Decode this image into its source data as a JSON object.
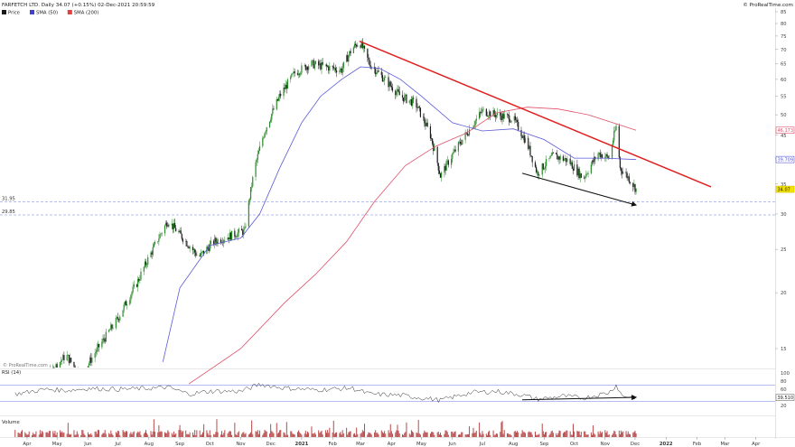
{
  "header": {
    "title": "FARFETCH LTD. Daily 34.07 (+0.15%) 02-Dec-2021 20:59:59",
    "brand": "© ProRealTime.com"
  },
  "legend": [
    {
      "label": "Price",
      "color": "#1a1a1a"
    },
    {
      "label": "SMA (50)",
      "color": "#3f3fd0"
    },
    {
      "label": "SMA (200)",
      "color": "#e04040"
    }
  ],
  "watermark": "© ProRealTime.com",
  "colors": {
    "bull": "#2a8a2a",
    "bear": "#1a1a1a",
    "sma50": "#5a5ad8",
    "sma200": "#e0506a",
    "trendline": "#e02020",
    "support": "#9aa6f0",
    "volume": "#b84a4a",
    "rsi": "#2a2a2a",
    "arrow": "#111111"
  },
  "chart_data": [
    {
      "type": "candlestick",
      "title": "FARFETCH LTD. Daily 34.07 (+0.15%) 02-Dec-2021 20:59:59",
      "scale": "log",
      "ylim": [
        12.5,
        85
      ],
      "price_ticks": [
        "85",
        "80",
        "75",
        "70",
        "65",
        "60",
        "55",
        "50",
        "45",
        "40",
        "35",
        "30",
        "25",
        "20",
        "15"
      ],
      "x_ticks": [
        "Apr",
        "May",
        "Jun",
        "Jul",
        "Aug",
        "Sep",
        "Oct",
        "Nov",
        "Dec",
        "2021",
        "Feb",
        "Mar",
        "Apr",
        "May",
        "Jun",
        "Jul",
        "Aug",
        "Sep",
        "Oct",
        "Nov",
        "Dec",
        "2022",
        "Feb",
        "Mar",
        "Apr"
      ],
      "x_tick_dates": [
        "2020-04-01",
        "2020-05-01",
        "2020-06-01",
        "2020-07-01",
        "2020-08-01",
        "2020-09-01",
        "2020-10-01",
        "2020-11-01",
        "2020-12-01",
        "2021-01-01",
        "2021-02-01",
        "2021-03-01",
        "2021-04-01",
        "2021-05-01",
        "2021-06-01",
        "2021-07-01",
        "2021-08-01",
        "2021-09-01",
        "2021-10-01",
        "2021-11-01",
        "2021-12-01",
        "2022-01-01",
        "2022-02-01",
        "2022-03-01",
        "2022-04-01"
      ],
      "price_path": [
        [
          "2020-03-20",
          10.5
        ],
        [
          "2020-04-15",
          12.5
        ],
        [
          "2020-05-10",
          14.5
        ],
        [
          "2020-05-25",
          13.0
        ],
        [
          "2020-06-15",
          15.5
        ],
        [
          "2020-07-01",
          17.5
        ],
        [
          "2020-07-20",
          21.0
        ],
        [
          "2020-08-05",
          25.0
        ],
        [
          "2020-08-20",
          29.0
        ],
        [
          "2020-09-01",
          27.0
        ],
        [
          "2020-09-20",
          24.0
        ],
        [
          "2020-10-05",
          26.0
        ],
        [
          "2020-10-25",
          27.0
        ],
        [
          "2020-11-05",
          27.5
        ],
        [
          "2020-11-15",
          38.0
        ],
        [
          "2020-11-25",
          46.0
        ],
        [
          "2020-12-10",
          55.0
        ],
        [
          "2020-12-25",
          62.0
        ],
        [
          "2021-01-10",
          65.0
        ],
        [
          "2021-01-25",
          64.0
        ],
        [
          "2021-02-10",
          63.0
        ],
        [
          "2021-02-20",
          70.0
        ],
        [
          "2021-02-28",
          73.0
        ],
        [
          "2021-03-10",
          65.0
        ],
        [
          "2021-03-25",
          60.0
        ],
        [
          "2021-04-10",
          55.0
        ],
        [
          "2021-04-25",
          53.0
        ],
        [
          "2021-05-10",
          45.0
        ],
        [
          "2021-05-20",
          36.5
        ],
        [
          "2021-06-05",
          42.0
        ],
        [
          "2021-06-20",
          47.0
        ],
        [
          "2021-07-01",
          51.0
        ],
        [
          "2021-07-15",
          50.0
        ],
        [
          "2021-08-01",
          49.0
        ],
        [
          "2021-08-15",
          43.0
        ],
        [
          "2021-08-25",
          37.0
        ],
        [
          "2021-09-10",
          40.5
        ],
        [
          "2021-09-25",
          39.5
        ],
        [
          "2021-10-10",
          36.0
        ],
        [
          "2021-10-25",
          41.0
        ],
        [
          "2021-11-05",
          40.0
        ],
        [
          "2021-11-12",
          47.0
        ],
        [
          "2021-11-16",
          38.0
        ],
        [
          "2021-11-25",
          36.0
        ],
        [
          "2021-12-02",
          34.07
        ]
      ],
      "sma50": [
        [
          "2020-08-15",
          14.0
        ],
        [
          "2020-09-01",
          20.5
        ],
        [
          "2020-10-01",
          25.5
        ],
        [
          "2020-11-01",
          26.5
        ],
        [
          "2020-11-20",
          30.0
        ],
        [
          "2020-12-10",
          38.0
        ],
        [
          "2021-01-01",
          48.0
        ],
        [
          "2021-01-20",
          55.0
        ],
        [
          "2021-02-10",
          60.0
        ],
        [
          "2021-03-01",
          64.0
        ],
        [
          "2021-03-20",
          63.5
        ],
        [
          "2021-04-10",
          60.0
        ],
        [
          "2021-05-01",
          55.0
        ],
        [
          "2021-06-01",
          48.0
        ],
        [
          "2021-07-01",
          46.0
        ],
        [
          "2021-08-01",
          46.5
        ],
        [
          "2021-09-01",
          44.0
        ],
        [
          "2021-10-01",
          40.0
        ],
        [
          "2021-11-01",
          40.0
        ],
        [
          "2021-12-02",
          39.709
        ]
      ],
      "sma200": [
        [
          "2020-09-10",
          12.5
        ],
        [
          "2020-11-01",
          15.0
        ],
        [
          "2020-12-15",
          19.0
        ],
        [
          "2021-01-15",
          22.0
        ],
        [
          "2021-02-15",
          26.0
        ],
        [
          "2021-03-15",
          32.0
        ],
        [
          "2021-04-15",
          38.5
        ],
        [
          "2021-05-15",
          42.5
        ],
        [
          "2021-06-15",
          45.5
        ],
        [
          "2021-07-15",
          50.5
        ],
        [
          "2021-08-15",
          52.0
        ],
        [
          "2021-09-15",
          51.5
        ],
        [
          "2021-10-15",
          50.0
        ],
        [
          "2021-11-15",
          47.5
        ],
        [
          "2021-12-02",
          46.173
        ]
      ],
      "trendline": [
        [
          "2021-02-28",
          73.0
        ],
        [
          "2022-02-15",
          34.5
        ]
      ],
      "divergence_arrow": [
        [
          "2021-08-10",
          37.0
        ],
        [
          "2021-12-02",
          31.4
        ]
      ],
      "support_levels": [
        {
          "label": "31.95",
          "value": 31.95
        },
        {
          "label": "29.85",
          "value": 29.85
        }
      ],
      "right_tags": [
        {
          "label": "46.173",
          "value": 46.173,
          "series": "sma200"
        },
        {
          "label": "39.709",
          "value": 39.709,
          "series": "sma50"
        },
        {
          "label": "34.07",
          "value": 34.07,
          "series": "price"
        }
      ]
    },
    {
      "type": "line",
      "title": "RSI (14)",
      "ylim": [
        0,
        100
      ],
      "y_ticks": [
        "100",
        "80",
        "60",
        "40",
        "20"
      ],
      "levels": [
        70,
        30
      ],
      "last_value_label": "39.510",
      "series": [
        [
          "2020-03-20",
          48
        ],
        [
          "2020-04-20",
          60
        ],
        [
          "2020-05-10",
          57
        ],
        [
          "2020-06-01",
          62
        ],
        [
          "2020-07-01",
          60
        ],
        [
          "2020-08-01",
          62
        ],
        [
          "2020-08-20",
          65
        ],
        [
          "2020-09-10",
          48
        ],
        [
          "2020-10-01",
          55
        ],
        [
          "2020-11-01",
          55
        ],
        [
          "2020-11-20",
          72
        ],
        [
          "2020-12-15",
          63
        ],
        [
          "2021-01-15",
          58
        ],
        [
          "2021-02-20",
          63
        ],
        [
          "2021-03-10",
          48
        ],
        [
          "2021-04-10",
          45
        ],
        [
          "2021-05-20",
          33
        ],
        [
          "2021-06-20",
          52
        ],
        [
          "2021-07-15",
          55
        ],
        [
          "2021-08-10",
          46
        ],
        [
          "2021-08-25",
          35
        ],
        [
          "2021-09-20",
          43
        ],
        [
          "2021-10-10",
          38
        ],
        [
          "2021-11-05",
          52
        ],
        [
          "2021-11-12",
          70
        ],
        [
          "2021-11-18",
          44
        ],
        [
          "2021-12-02",
          39.51
        ]
      ],
      "divergence_arrow": [
        [
          "2021-08-10",
          34.0
        ],
        [
          "2021-12-02",
          40.0
        ]
      ]
    },
    {
      "type": "bar",
      "title": "Volume",
      "note": "daily volume, relative scale"
    }
  ]
}
